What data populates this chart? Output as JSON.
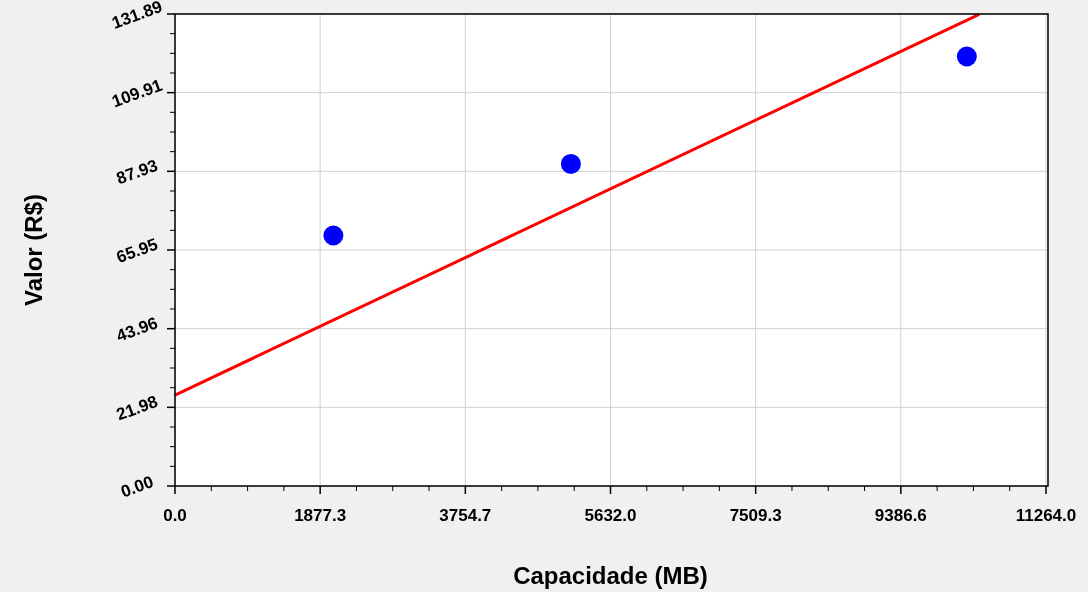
{
  "chart_data": {
    "type": "scatter",
    "xlabel": "Capacidade  (MB)",
    "ylabel": "Valor  (R$)",
    "series": [
      {
        "color": "#0000ff",
        "marker": "circle",
        "x": [
          2048,
          5120,
          10240
        ],
        "values": [
          70,
          90,
          120
        ]
      },
      {
        "type": "line",
        "color": "#ff0000",
        "x": [
          0,
          10400
        ],
        "values": [
          25.4,
          131.8
        ]
      }
    ],
    "xlim": [
      0,
      11264
    ],
    "ylim": [
      0,
      131.89
    ],
    "xticks": [
      {
        "value": 0,
        "label": "0.0"
      },
      {
        "value": 1877.3,
        "label": "1877.3"
      },
      {
        "value": 3754.7,
        "label": "3754.7"
      },
      {
        "value": 5632,
        "label": "5632.0"
      },
      {
        "value": 7509.3,
        "label": "7509.3"
      },
      {
        "value": 9386.6,
        "label": "9386.6"
      },
      {
        "value": 11264,
        "label": "11264.0"
      }
    ],
    "yticks": [
      {
        "value": 0,
        "label": "0.00"
      },
      21.98,
      43.96,
      65.95,
      87.93,
      109.91,
      131.89
    ],
    "grid": true,
    "line_style": "solid"
  }
}
